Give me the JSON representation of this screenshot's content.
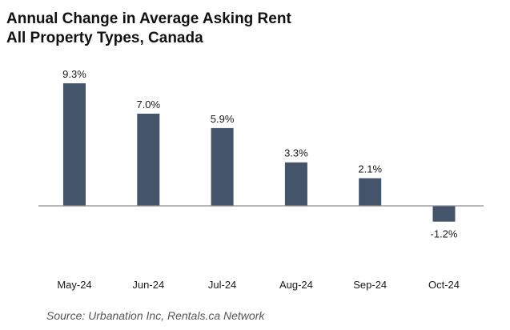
{
  "header": {
    "title_line1": "Annual Change in Average Asking Rent",
    "title_line2": "All Property Types, Canada"
  },
  "source": "Source: Urbanation Inc, Rentals.ca Network",
  "colors": {
    "bar": "#44546a",
    "axis": "#8c8c8c",
    "text": "#1a1a1a"
  },
  "chart_data": {
    "type": "bar",
    "title": "Annual Change in Average Asking Rent All Property Types, Canada",
    "categories": [
      "May-24",
      "Jun-24",
      "Jul-24",
      "Aug-24",
      "Sep-24",
      "Oct-24"
    ],
    "values": [
      9.3,
      7.0,
      5.9,
      3.3,
      2.1,
      -1.2
    ],
    "value_labels": [
      "9.3%",
      "7.0%",
      "5.9%",
      "3.3%",
      "2.1%",
      "-1.2%"
    ],
    "xlabel": "",
    "ylabel": "",
    "ylim": [
      -1.2,
      9.3
    ],
    "grid": false,
    "legend": "none"
  }
}
